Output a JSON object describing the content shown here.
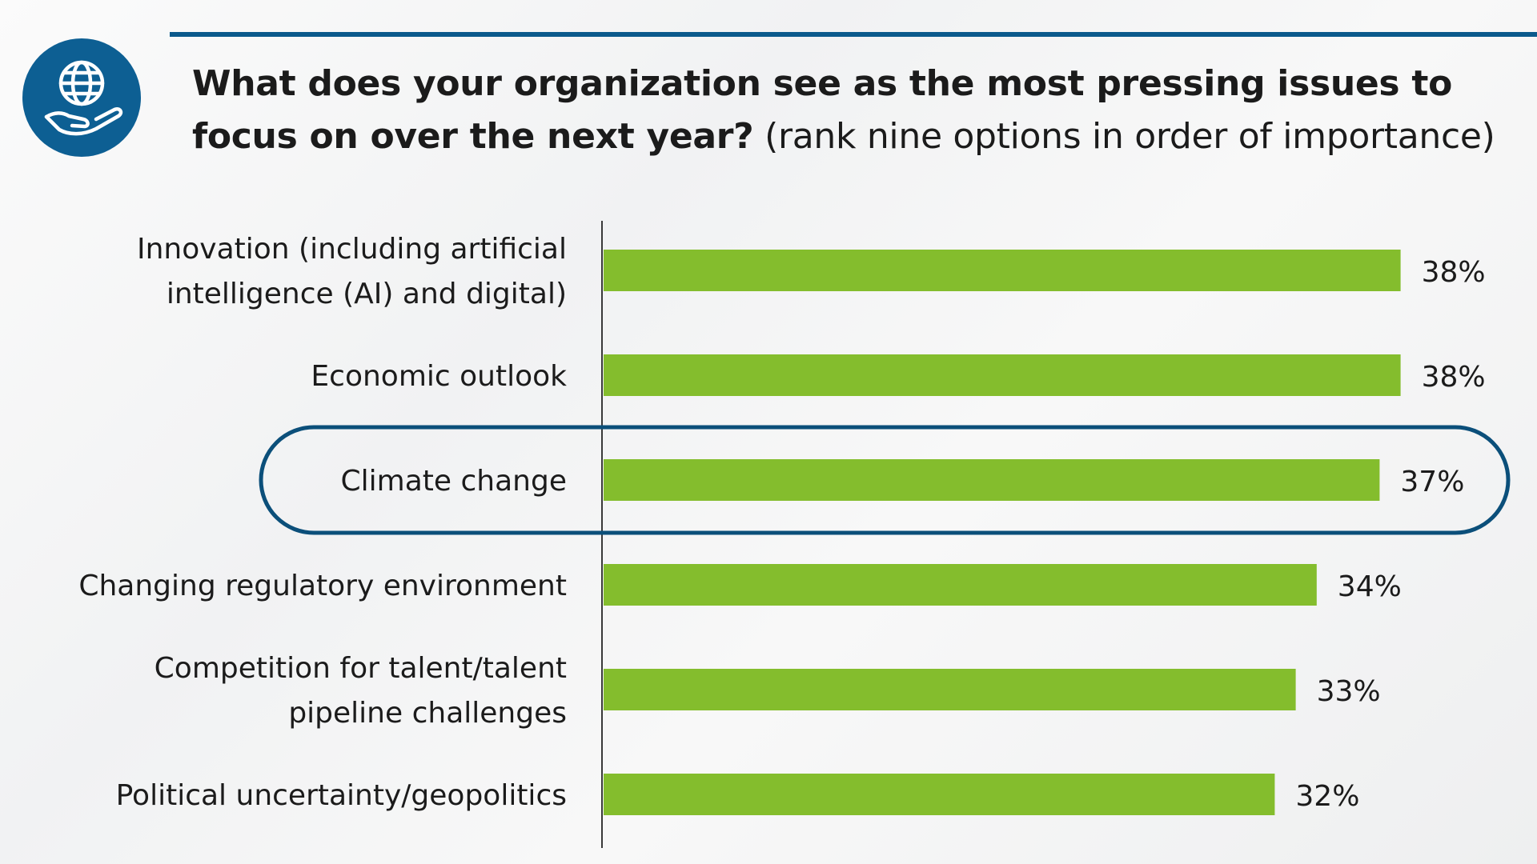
{
  "header": {
    "question": "What does your organization see as the most pressing issues to focus on over the next year?",
    "instruction": "(rank nine options in order of importance)"
  },
  "logo": {
    "icon": "globe-in-hand-icon",
    "color": "#0d5f93"
  },
  "colors": {
    "bar": "#84bd2d",
    "accent": "#0b5a8c",
    "highlight": "#0b4f7a"
  },
  "chart_data": {
    "type": "bar",
    "orientation": "horizontal",
    "title": "What does your organization see as the most pressing issues to focus on over the next year? (rank nine options in order of importance)",
    "categories": [
      [
        "Innovation (including artificial",
        "intelligence (AI) and digital)"
      ],
      [
        "Economic outlook"
      ],
      [
        "Climate change"
      ],
      [
        "Changing regulatory environment"
      ],
      [
        "Competition for talent/talent",
        "pipeline challenges"
      ],
      [
        "Political uncertainty/geopolitics"
      ]
    ],
    "values": [
      38,
      38,
      37,
      34,
      33,
      32
    ],
    "data_labels": [
      "38%",
      "38%",
      "37%",
      "34%",
      "33%",
      "32%"
    ],
    "unit": "%",
    "highlighted_category_index": 2,
    "xaxis_visible": false,
    "grid": false,
    "legend": "none"
  }
}
